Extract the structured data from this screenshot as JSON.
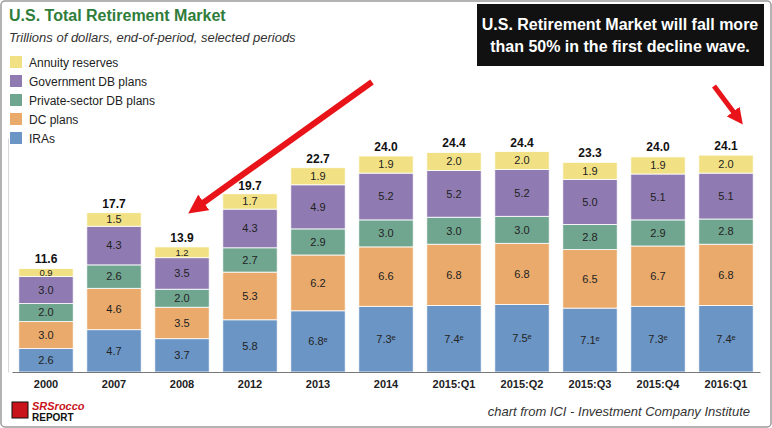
{
  "chart_data": {
    "type": "bar",
    "title": "U.S. Total Retirement Market",
    "subtitle": "Trillions of dollars, end-of-period, selected periods",
    "annotation": [
      "U.S. Retirement Market will fall more",
      "than 50% in the first decline wave."
    ],
    "source": "chart from ICI - Investment Company Institute",
    "logo": [
      "SRSrocco",
      "REPORT"
    ],
    "categories": [
      "2000",
      "2007",
      "2008",
      "2012",
      "2013",
      "2014",
      "2015:Q1",
      "2015:Q2",
      "2015:Q3",
      "2015:Q4",
      "2016:Q1"
    ],
    "series": [
      {
        "name": "IRAs",
        "color": "#6b95c4",
        "values": [
          2.6,
          4.7,
          3.7,
          5.8,
          6.8,
          7.3,
          7.4,
          7.5,
          7.1,
          7.3,
          7.4
        ],
        "value_labels": [
          "2.6",
          "4.7",
          "3.7",
          "5.8",
          "6.8ᵉ",
          "7.3ᵉ",
          "7.4ᵉ",
          "7.5ᵉ",
          "7.1ᵉ",
          "7.3ᵉ",
          "7.4ᵉ"
        ]
      },
      {
        "name": "DC plans",
        "color": "#e9aa6c",
        "values": [
          3.0,
          4.6,
          3.5,
          5.3,
          6.2,
          6.6,
          6.8,
          6.8,
          6.5,
          6.7,
          6.8
        ],
        "value_labels": [
          "3.0",
          "4.6",
          "3.5",
          "5.3",
          "6.2",
          "6.6",
          "6.8",
          "6.8",
          "6.5",
          "6.7",
          "6.8"
        ]
      },
      {
        "name": "Private-sector DB plans",
        "color": "#70a58f",
        "values": [
          2.0,
          2.6,
          2.0,
          2.7,
          2.9,
          3.0,
          3.0,
          3.0,
          2.8,
          2.9,
          2.8
        ],
        "value_labels": [
          "2.0",
          "2.6",
          "2.0",
          "2.7",
          "2.9",
          "3.0",
          "3.0",
          "3.0",
          "2.8",
          "2.9",
          "2.8"
        ]
      },
      {
        "name": "Government DB plans",
        "color": "#8f7bb2",
        "values": [
          3.0,
          4.3,
          3.5,
          4.3,
          4.9,
          5.2,
          5.2,
          5.2,
          5.0,
          5.1,
          5.1
        ],
        "value_labels": [
          "3.0",
          "4.3",
          "3.5",
          "4.3",
          "4.9",
          "5.2",
          "5.2",
          "5.2",
          "5.0",
          "5.1",
          "5.1"
        ]
      },
      {
        "name": "Annuity reserves",
        "color": "#f2e184",
        "values": [
          0.9,
          1.5,
          1.2,
          1.7,
          1.9,
          1.9,
          2.0,
          2.0,
          1.9,
          1.9,
          2.0
        ],
        "value_labels": [
          "0.9",
          "1.5",
          "1.2",
          "1.7",
          "1.9",
          "1.9",
          "2.0",
          "2.0",
          "1.9",
          "1.9",
          "2.0"
        ]
      }
    ],
    "totals": [
      11.6,
      17.7,
      13.9,
      19.7,
      22.7,
      24.0,
      24.4,
      24.4,
      23.3,
      24.0,
      24.1
    ],
    "totals_labels": [
      "11.6",
      "17.7",
      "13.9",
      "19.7",
      "22.7",
      "24.0",
      "24.4",
      "24.4",
      "23.3",
      "24.0",
      "24.1"
    ],
    "ylim": [
      0,
      26
    ],
    "stacked": true,
    "data_labels": true,
    "legend": "top-left",
    "tick_labels": "x",
    "grid": false
  }
}
